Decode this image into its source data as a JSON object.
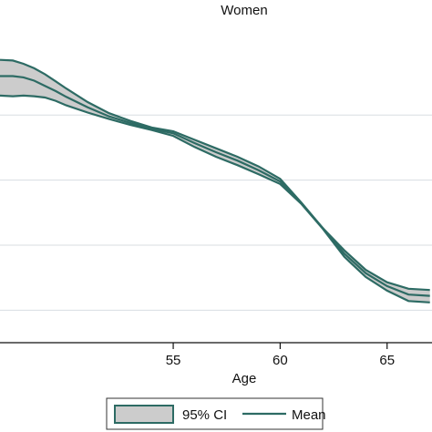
{
  "chart_data": {
    "type": "area",
    "title": "Women",
    "xlabel": "Age",
    "ylabel": "",
    "xlim": [
      46.9,
      67.1
    ],
    "ylim": [
      0.5,
      5.35
    ],
    "grid": true,
    "legend_position": "bottom",
    "x_ticks": [
      55,
      60,
      65
    ],
    "x_tick_labels": [
      "55",
      "60",
      "65"
    ],
    "y_grid_values": [
      1,
      2,
      3,
      4
    ],
    "x": [
      46.9,
      47.5,
      48,
      48.5,
      49,
      49.5,
      50,
      51,
      52,
      53,
      54,
      55,
      56,
      57,
      58,
      59,
      60,
      61,
      62,
      63,
      64,
      65,
      66,
      67
    ],
    "series": [
      {
        "name": "95% CI",
        "kind": "band",
        "upper": [
          4.85,
          4.84,
          4.79,
          4.72,
          4.63,
          4.52,
          4.41,
          4.2,
          4.03,
          3.91,
          3.81,
          3.75,
          3.62,
          3.49,
          3.36,
          3.21,
          3.02,
          2.65,
          2.26,
          1.92,
          1.62,
          1.43,
          1.33,
          1.31
        ],
        "lower": [
          4.3,
          4.29,
          4.3,
          4.29,
          4.27,
          4.22,
          4.15,
          4.04,
          3.94,
          3.85,
          3.77,
          3.68,
          3.51,
          3.36,
          3.23,
          3.09,
          2.94,
          2.63,
          2.25,
          1.82,
          1.51,
          1.3,
          1.14,
          1.12
        ]
      },
      {
        "name": "Mean",
        "kind": "line",
        "values": [
          4.6,
          4.6,
          4.58,
          4.53,
          4.45,
          4.37,
          4.28,
          4.12,
          3.98,
          3.88,
          3.79,
          3.72,
          3.57,
          3.43,
          3.3,
          3.15,
          2.98,
          2.64,
          2.26,
          1.87,
          1.57,
          1.37,
          1.24,
          1.22
        ]
      }
    ],
    "colors": {
      "band_fill": "#cccccc",
      "line": "#2d6b64",
      "grid": "#d8dde2",
      "axis": "#111111"
    }
  }
}
